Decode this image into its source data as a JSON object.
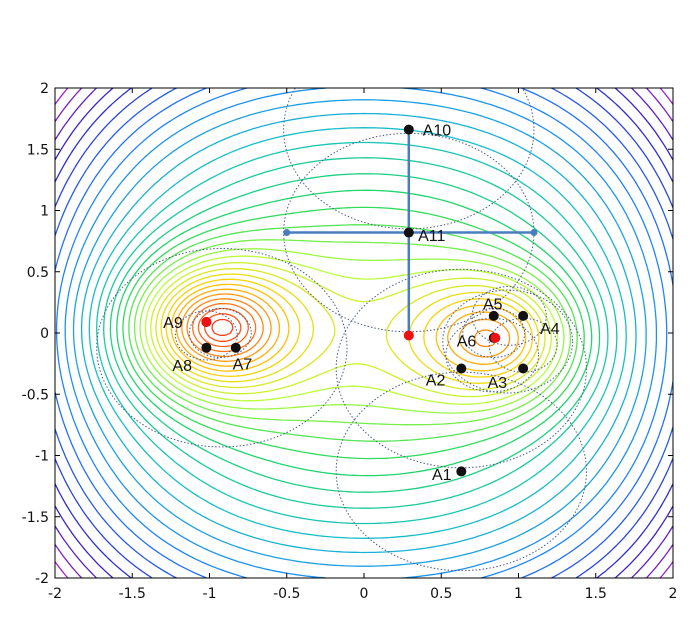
{
  "chart_data": {
    "type": "contour",
    "xlim": [
      -2,
      2
    ],
    "ylim": [
      -2,
      2
    ],
    "x_ticks": [
      "-2",
      "-1.5",
      "-1",
      "-0.5",
      "0",
      "0.5",
      "1",
      "1.5",
      "2"
    ],
    "y_ticks": [
      "2",
      "1.5",
      "1",
      "0.5",
      "0",
      "-0.5",
      "-1",
      "-1.5",
      "-2"
    ],
    "contour_colormap": [
      "#ff2a1a",
      "#ff7a1a",
      "#ffd000",
      "#b8ff3c",
      "#20d860",
      "#16c0c8",
      "#2080ff",
      "#3020c8",
      "#c020c8"
    ],
    "centers": [
      {
        "x": -1.02,
        "y": 0.09
      },
      {
        "x": 0.29,
        "y": -0.02
      },
      {
        "x": 0.85,
        "y": -0.04
      }
    ],
    "points": [
      {
        "label": "A1",
        "x": 0.63,
        "y": -1.13,
        "lx": 0.44,
        "ly": -1.15
      },
      {
        "label": "A2",
        "x": 0.63,
        "y": -0.29,
        "lx": 0.4,
        "ly": -0.38
      },
      {
        "label": "A3",
        "x": 1.03,
        "y": -0.29,
        "lx": 0.8,
        "ly": -0.4
      },
      {
        "label": "A4",
        "x": 1.03,
        "y": 0.14,
        "lx": 1.14,
        "ly": 0.04
      },
      {
        "label": "A5",
        "x": 0.84,
        "y": 0.14,
        "lx": 0.77,
        "ly": 0.24
      },
      {
        "label": "A6",
        "x": 0.84,
        "y": -0.04,
        "lx": 0.6,
        "ly": -0.06
      },
      {
        "label": "A7",
        "x": -0.83,
        "y": -0.12,
        "lx": -0.85,
        "ly": -0.25
      },
      {
        "label": "A8",
        "x": -1.02,
        "y": -0.12,
        "lx": -1.24,
        "ly": -0.26
      },
      {
        "label": "A9",
        "x": -1.02,
        "y": 0.09,
        "lx": -1.3,
        "ly": 0.09
      },
      {
        "label": "A10",
        "x": 0.29,
        "y": 1.66,
        "lx": 0.38,
        "ly": 1.66
      },
      {
        "label": "A11",
        "x": 0.29,
        "y": 0.82,
        "lx": 0.35,
        "ly": 0.8
      }
    ],
    "circles": [
      {
        "cx": 0.29,
        "cy": 1.66,
        "r": 0.81
      },
      {
        "cx": 0.29,
        "cy": 0.82,
        "r": 0.81
      },
      {
        "cx": 0.63,
        "cy": -0.29,
        "r": 0.81
      },
      {
        "cx": 0.63,
        "cy": -1.13,
        "r": 0.81
      },
      {
        "cx": -0.92,
        "cy": -0.12,
        "r": 0.81
      },
      {
        "cx": -1.02,
        "cy": -0.02,
        "r": 0.2
      },
      {
        "cx": -0.93,
        "cy": 0.0,
        "r": 0.2
      },
      {
        "cx": 0.84,
        "cy": 0.0,
        "r": 0.2
      },
      {
        "cx": 1.03,
        "cy": -0.1,
        "r": 0.22
      },
      {
        "cx": 0.94,
        "cy": 0.14,
        "r": 0.24
      },
      {
        "cx": 0.83,
        "cy": -0.18,
        "r": 0.3
      },
      {
        "cx": 0.93,
        "cy": -0.07,
        "r": 0.42
      }
    ],
    "cross": {
      "h": {
        "x1": -0.5,
        "x2": 1.1,
        "y": 0.82
      },
      "v": {
        "x": 0.29,
        "y1": -0.02,
        "y2": 1.66
      }
    }
  }
}
